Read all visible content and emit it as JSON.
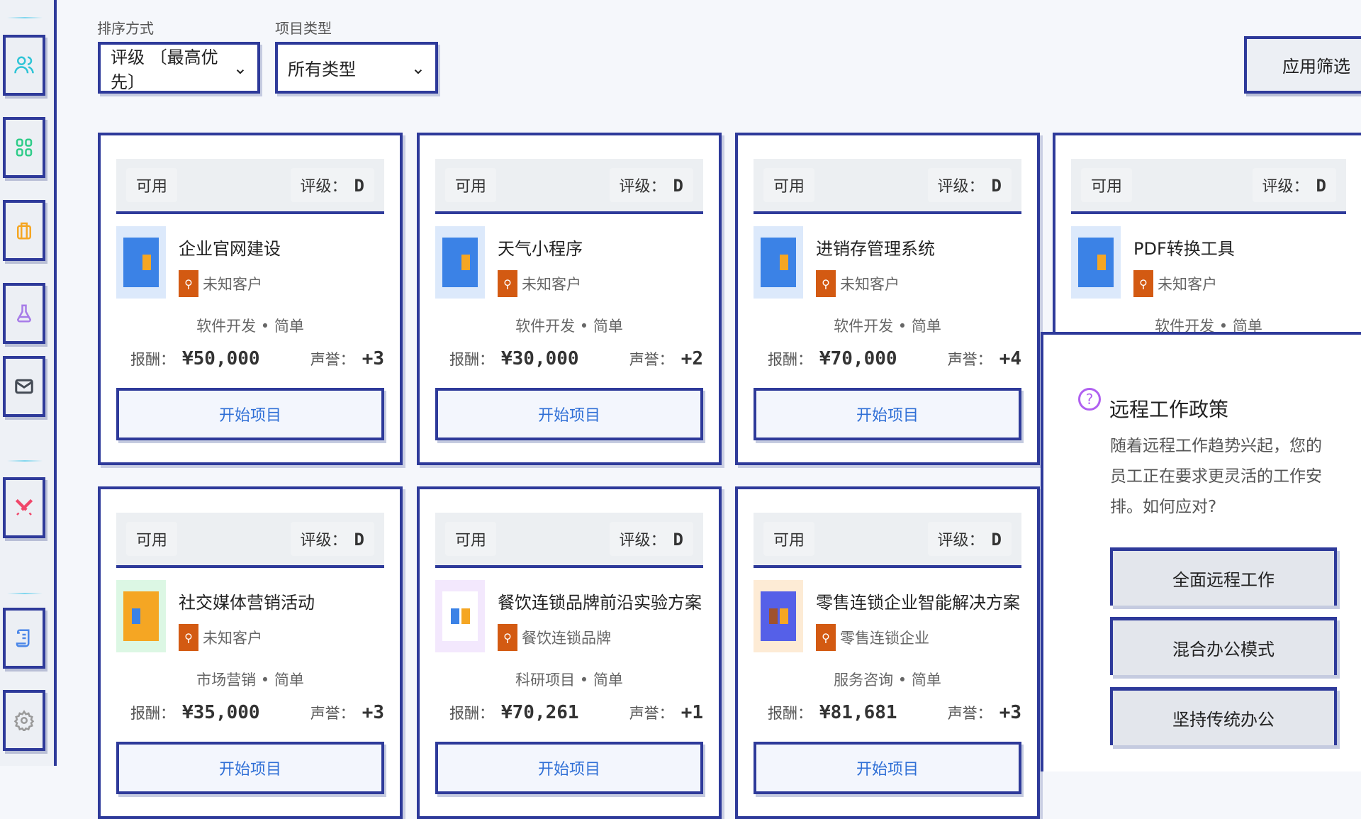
{
  "sidebar": {
    "items": [
      {
        "icon": "users-icon",
        "color": "#2ec4d6"
      },
      {
        "icon": "grid-icon",
        "color": "#2ecc88"
      },
      {
        "icon": "briefcase-icon",
        "color": "#f5a623"
      },
      {
        "icon": "flask-icon",
        "color": "#a77be8"
      },
      {
        "icon": "mail-icon",
        "color": "#444b55"
      },
      {
        "icon": "swords-icon",
        "color": "#f0476a"
      },
      {
        "icon": "scroll-icon",
        "color": "#4a86e8"
      },
      {
        "icon": "gear-icon",
        "color": "#999"
      }
    ]
  },
  "filters": {
    "sort_label": "排序方式",
    "sort_value": "评级 〔最高优先〕",
    "type_label": "项目类型",
    "type_value": "所有类型",
    "apply": "应用筛选"
  },
  "grade_label": "评级：",
  "reward_label": "报酬：",
  "rep_label": "声誉：",
  "projects": [
    {
      "status": "可用",
      "grade": "D",
      "title": "企业官网建设",
      "client": "未知客户",
      "category": "软件开发",
      "difficulty": "简单",
      "reward": "¥50,000",
      "rep": "+3",
      "action": "开始项目",
      "icon_bg": "#dce9fb",
      "icon_fg": "#3b82e6"
    },
    {
      "status": "可用",
      "grade": "D",
      "title": "天气小程序",
      "client": "未知客户",
      "category": "软件开发",
      "difficulty": "简单",
      "reward": "¥30,000",
      "rep": "+2",
      "action": "开始项目",
      "icon_bg": "#dce9fb",
      "icon_fg": "#3b82e6"
    },
    {
      "status": "可用",
      "grade": "D",
      "title": "进销存管理系统",
      "client": "未知客户",
      "category": "软件开发",
      "difficulty": "简单",
      "reward": "¥70,000",
      "rep": "+4",
      "action": "开始项目",
      "icon_bg": "#dce9fb",
      "icon_fg": "#3b82e6"
    },
    {
      "status": "可用",
      "grade": "D",
      "title": "PDF转换工具",
      "client": "未知客户",
      "category": "软件开发",
      "difficulty": "简单",
      "reward": "",
      "rep": "",
      "action": "",
      "icon_bg": "#dce9fb",
      "icon_fg": "#3b82e6"
    },
    {
      "status": "可用",
      "grade": "D",
      "title": "社交媒体营销活动",
      "client": "未知客户",
      "category": "市场营销",
      "difficulty": "简单",
      "reward": "¥35,000",
      "rep": "+3",
      "action": "开始项目",
      "icon_bg": "#dcf7e4",
      "icon_fg": "#f5a623"
    },
    {
      "status": "可用",
      "grade": "D",
      "title": "餐饮连锁品牌前沿实验方案",
      "client": "餐饮连锁品牌",
      "category": "科研项目",
      "difficulty": "简单",
      "reward": "¥70,261",
      "rep": "+1",
      "action": "开始项目",
      "icon_bg": "#f3e8fd",
      "icon_fg": "#ffffff"
    },
    {
      "status": "可用",
      "grade": "D",
      "title": "零售连锁企业智能解决方案",
      "client": "零售连锁企业",
      "category": "服务咨询",
      "difficulty": "简单",
      "reward": "¥81,681",
      "rep": "+3",
      "action": "开始项目",
      "icon_bg": "#fdebd5",
      "icon_fg": "#5560e8"
    }
  ],
  "event": {
    "icon": "question-icon",
    "title": "远程工作政策",
    "description": "随着远程工作趋势兴起，您的员工正在要求更灵活的工作安排。如何应对?",
    "options": [
      "全面远程工作",
      "混合办公模式",
      "坚持传统办公"
    ]
  }
}
